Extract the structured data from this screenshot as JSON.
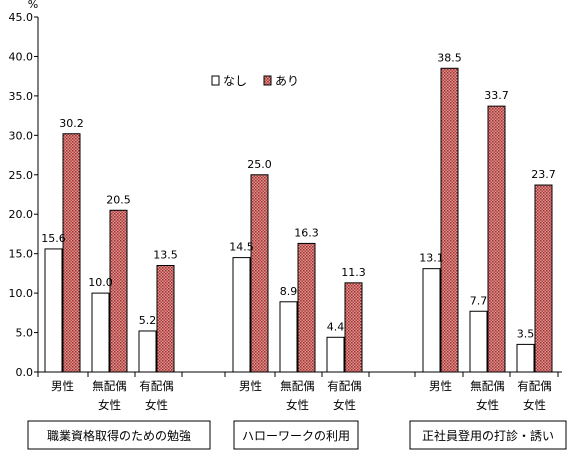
{
  "chart_data": {
    "type": "bar",
    "unit_label": "%",
    "ylim": [
      0,
      45
    ],
    "y_ticks": [
      "0.0",
      "5.0",
      "10.0",
      "15.0",
      "20.0",
      "25.0",
      "30.0",
      "35.0",
      "40.0",
      "45.0"
    ],
    "legend": {
      "placement": "top-center",
      "items": [
        "なし",
        "あり"
      ]
    },
    "groups": [
      {
        "label": "職業資格取得のための勉強",
        "categories": [
          {
            "line1": "男性",
            "line2": "",
            "values": {
              "なし": 15.6,
              "あり": 30.2
            }
          },
          {
            "line1": "無配偶",
            "line2": "女性",
            "values": {
              "なし": 10.0,
              "あり": 20.5
            }
          },
          {
            "line1": "有配偶",
            "line2": "女性",
            "values": {
              "なし": 5.2,
              "あり": 13.5
            }
          }
        ]
      },
      {
        "label": "ハローワークの利用",
        "categories": [
          {
            "line1": "男性",
            "line2": "",
            "values": {
              "なし": 14.5,
              "あり": 25.0
            }
          },
          {
            "line1": "無配偶",
            "line2": "女性",
            "values": {
              "なし": 8.9,
              "あり": 16.3
            }
          },
          {
            "line1": "有配偶",
            "line2": "女性",
            "values": {
              "なし": 4.4,
              "あり": 11.3
            }
          }
        ]
      },
      {
        "label": "正社員登用の打診・誘い",
        "categories": [
          {
            "line1": "男性",
            "line2": "",
            "values": {
              "なし": 13.1,
              "あり": 38.5
            }
          },
          {
            "line1": "無配偶",
            "line2": "女性",
            "values": {
              "なし": 7.7,
              "あり": 33.7
            }
          },
          {
            "line1": "有配偶",
            "line2": "女性",
            "values": {
              "なし": 3.5,
              "あり": 23.7
            }
          }
        ]
      }
    ],
    "series": [
      {
        "name": "なし",
        "fill": "#ffffff",
        "style": "plain"
      },
      {
        "name": "あり",
        "fill": "#c0504d",
        "style": "dotted-pattern"
      }
    ]
  }
}
